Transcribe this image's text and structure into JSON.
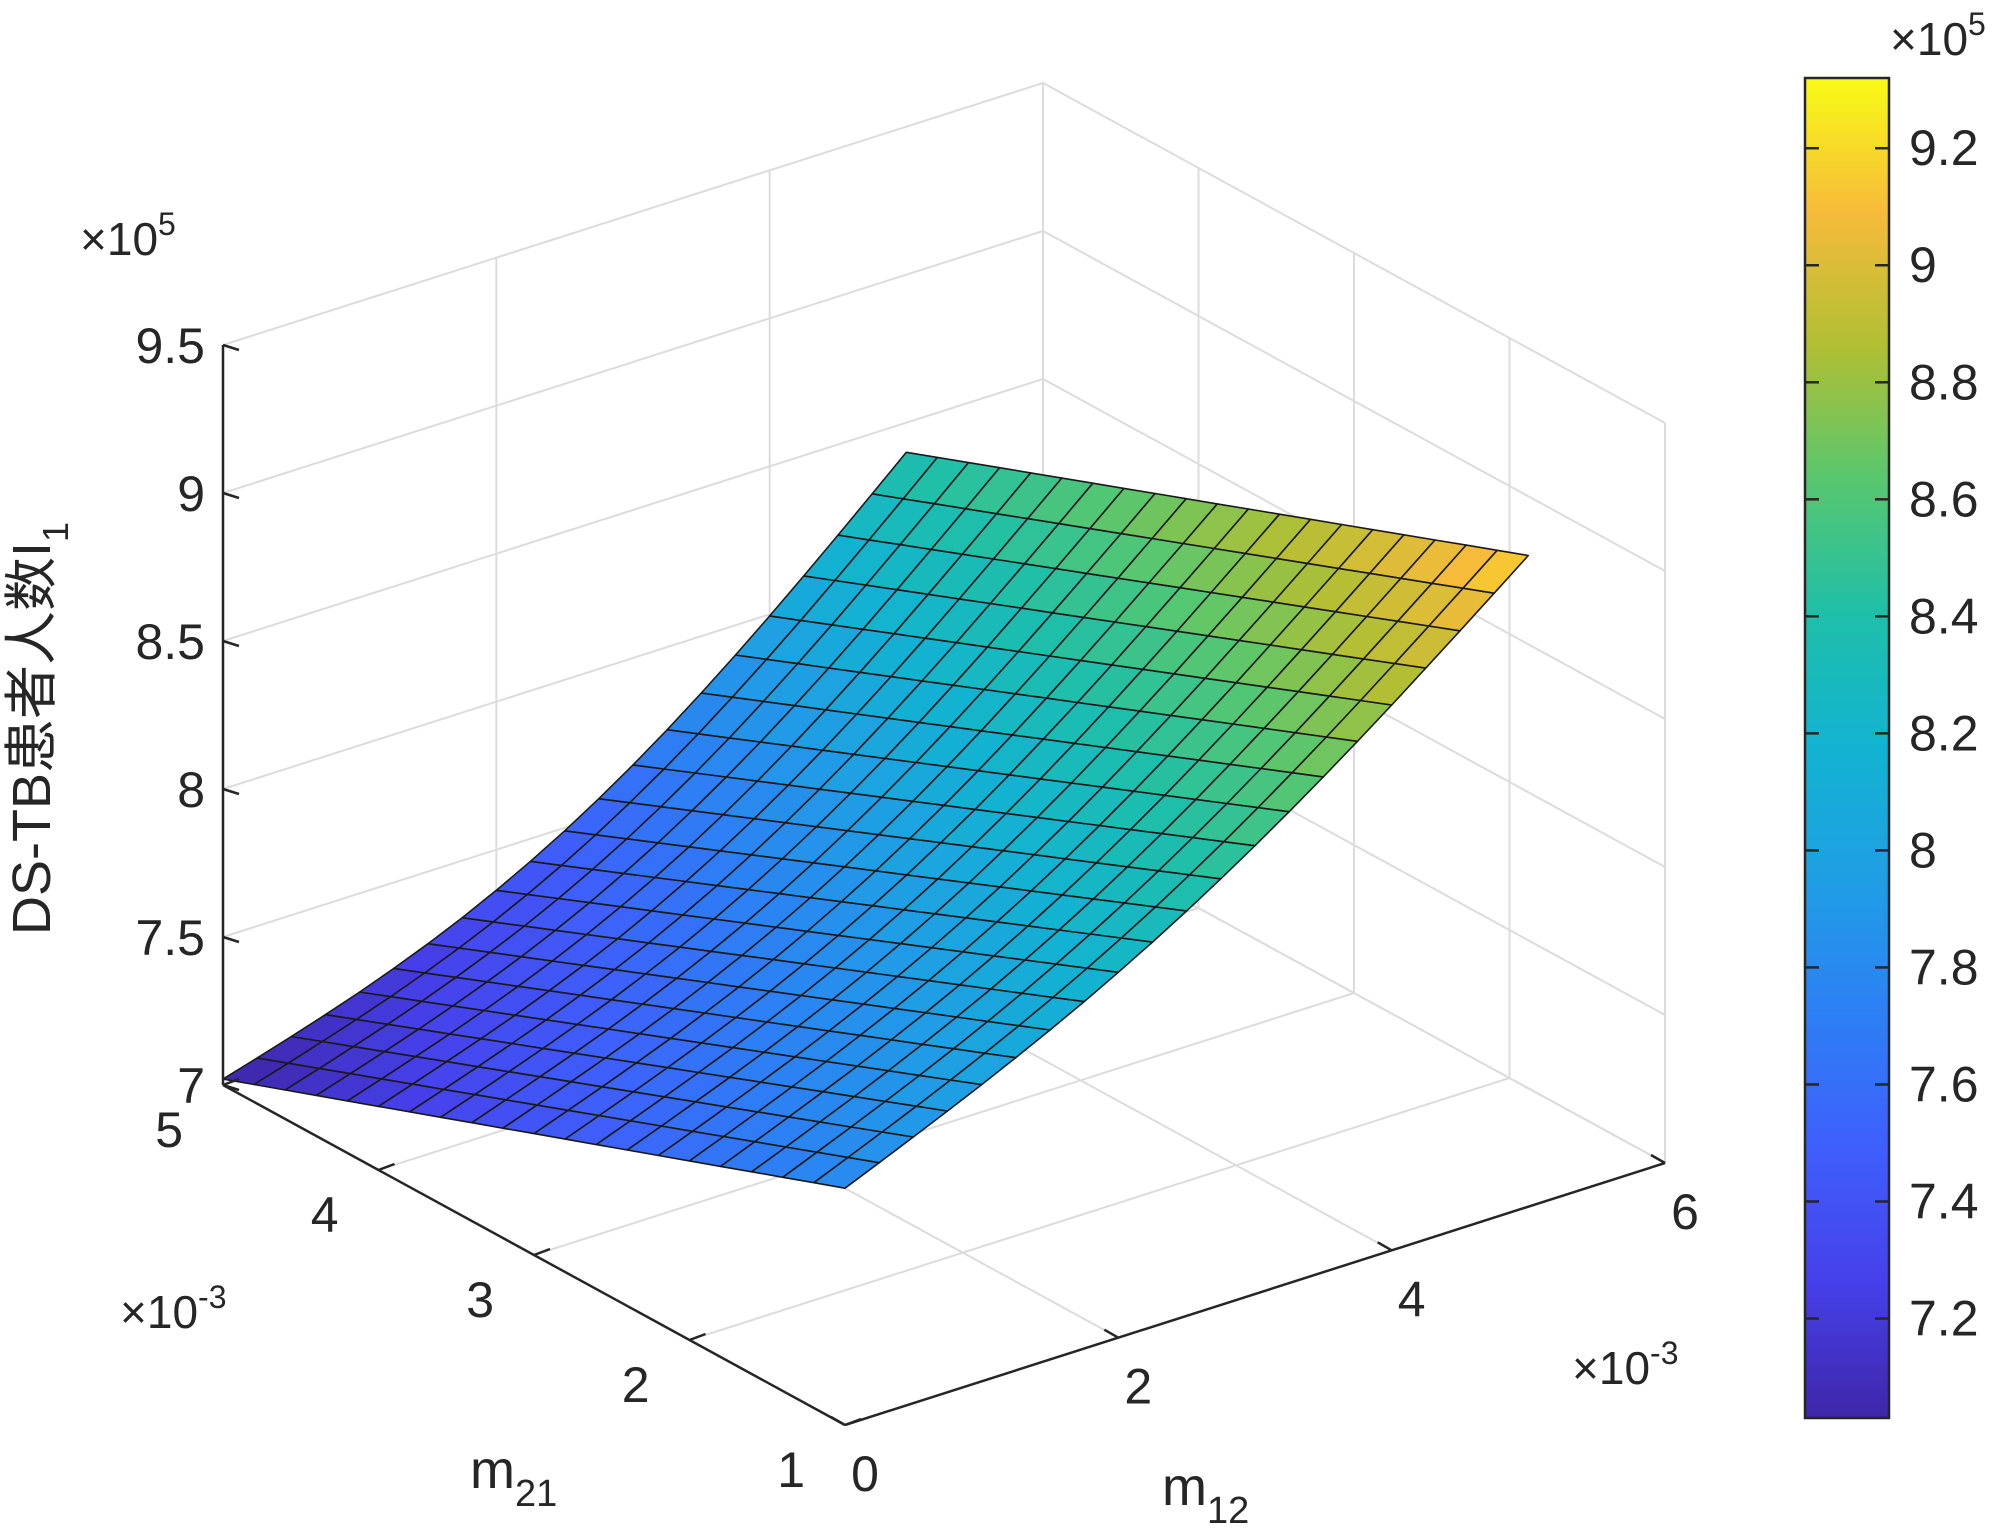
{
  "chart_data": {
    "type": "surface",
    "colormap": "parula",
    "grid": true,
    "axes": {
      "x": {
        "label_base": "m",
        "label_sub": "12",
        "range": [
          0,
          0.006
        ],
        "ticks": [
          "0",
          "2",
          "4",
          "6"
        ],
        "multiplier": "×10",
        "multiplier_exp": "-3"
      },
      "y": {
        "label_base": "m",
        "label_sub": "21",
        "range": [
          0.001,
          0.005
        ],
        "ticks": [
          "1",
          "2",
          "3",
          "4",
          "5"
        ],
        "multiplier": "×10",
        "multiplier_exp": "-3"
      },
      "z": {
        "label_base": "DS-TB患者人数I",
        "label_sub": "1",
        "range": [
          700000,
          950000
        ],
        "ticks": [
          "7",
          "7.5",
          "8",
          "8.5",
          "9",
          "9.5"
        ],
        "multiplier": "×10",
        "multiplier_exp": "5"
      }
    },
    "surface": {
      "x_range": [
        0,
        0.005
      ],
      "y_range": [
        0.001,
        0.005
      ],
      "corner_values": {
        "x0_y5": 702000,
        "x5_y5": 840000,
        "x0_y1": 780000,
        "x5_y1": 920000
      },
      "grid_size": [
        21,
        21
      ]
    },
    "colorbar": {
      "ticks": [
        "7.2",
        "7.4",
        "7.6",
        "7.8",
        "8",
        "8.2",
        "8.4",
        "8.6",
        "8.8",
        "9",
        "9.2"
      ],
      "range": [
        703000,
        932000
      ],
      "multiplier": "×10",
      "multiplier_exp": "5"
    }
  }
}
